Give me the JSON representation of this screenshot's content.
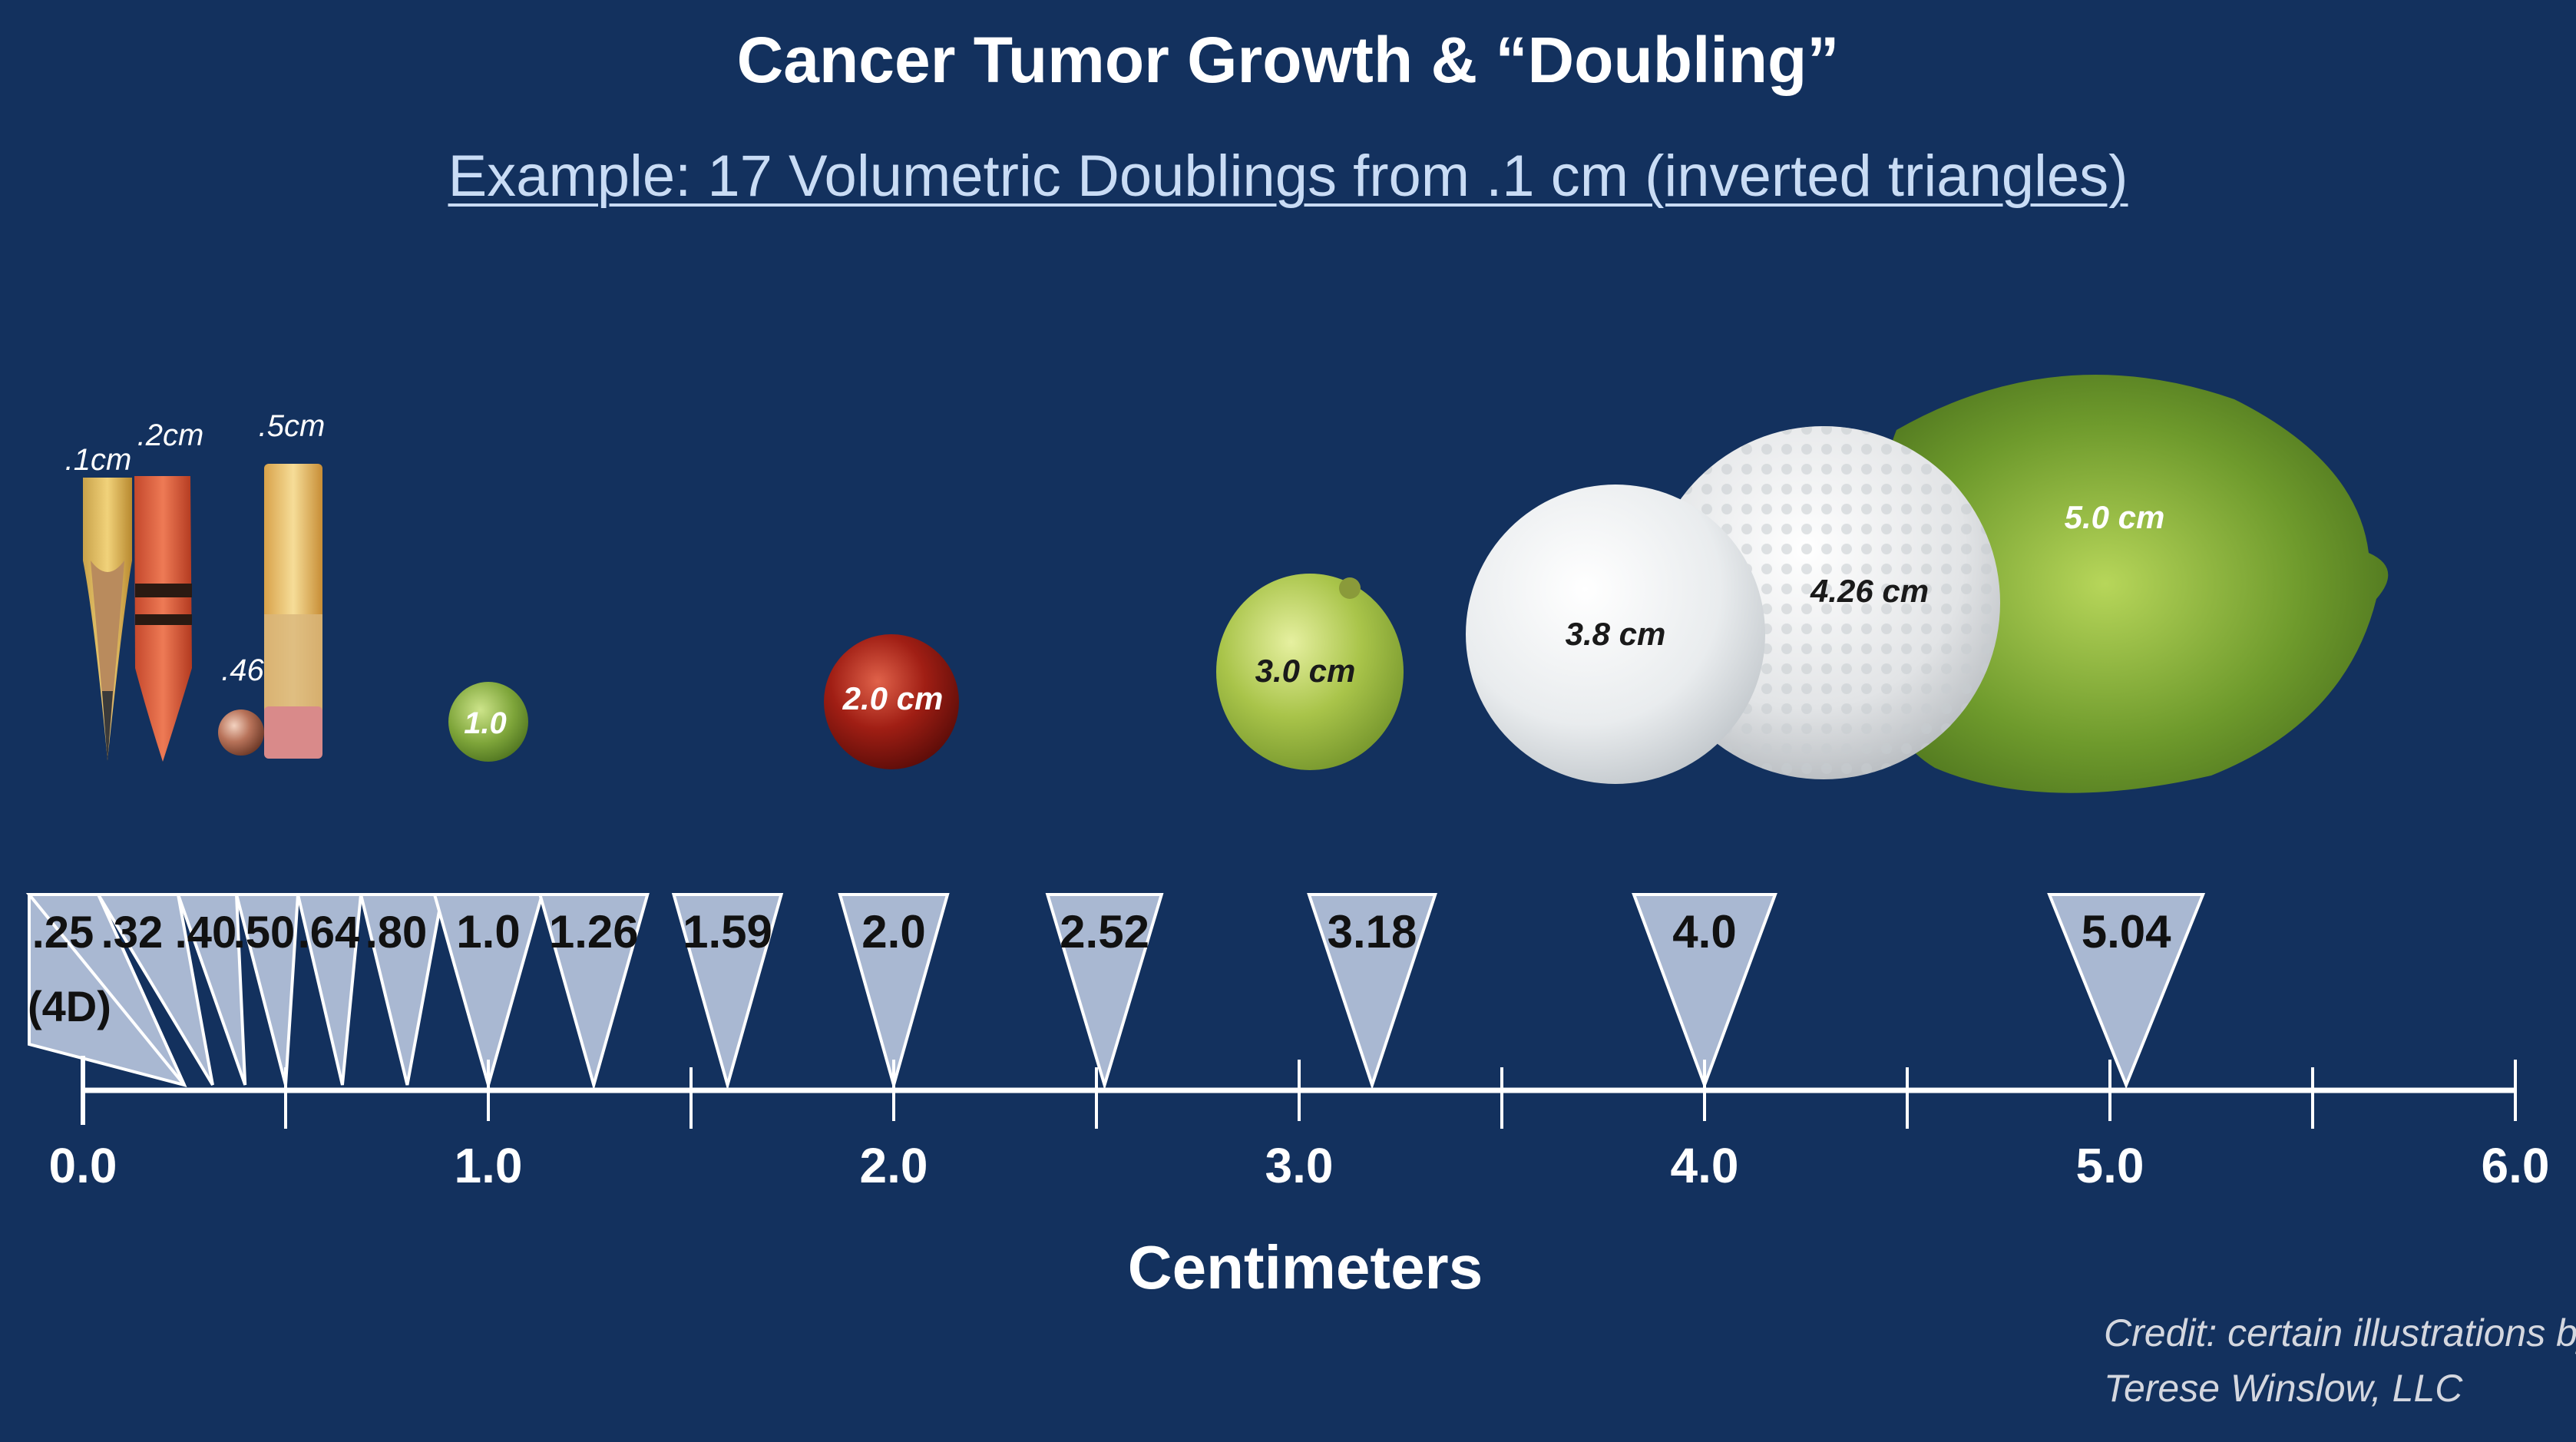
{
  "title": "Cancer Tumor Growth & “Doubling”",
  "subtitle": "Example: 17 Volumetric Doublings from .1 cm (inverted triangles)",
  "axis": {
    "label": "Centimeters",
    "min": 0,
    "max": 6,
    "tick_labels": [
      "0.0",
      "1.0",
      "2.0",
      "3.0",
      "4.0",
      "5.0",
      "6.0"
    ]
  },
  "doublings": [
    {
      "value": 0.25,
      "label": ".25"
    },
    {
      "value": 0.32,
      "label": ".32"
    },
    {
      "value": 0.4,
      "label": ".40"
    },
    {
      "value": 0.5,
      "label": ".50"
    },
    {
      "value": 0.64,
      "label": ".64"
    },
    {
      "value": 0.8,
      "label": ".80"
    },
    {
      "value": 1.0,
      "label": "1.0"
    },
    {
      "value": 1.26,
      "label": "1.26"
    },
    {
      "value": 1.59,
      "label": "1.59"
    },
    {
      "value": 2.0,
      "label": "2.0"
    },
    {
      "value": 2.52,
      "label": "2.52"
    },
    {
      "value": 3.18,
      "label": "3.18"
    },
    {
      "value": 4.0,
      "label": "4.0"
    },
    {
      "value": 5.04,
      "label": "5.04"
    }
  ],
  "first_group_note": "(4D)",
  "objects": [
    {
      "name": "pencil-tip",
      "label": ".1cm"
    },
    {
      "name": "crayon-tip",
      "label": ".2cm"
    },
    {
      "name": "bb-pellet",
      "label": ".46"
    },
    {
      "name": "pencil-eraser",
      "label": ".5cm"
    },
    {
      "name": "pea",
      "label": "1.0"
    },
    {
      "name": "cranberry",
      "label": "2.0 cm"
    },
    {
      "name": "grape",
      "label": "3.0 cm"
    },
    {
      "name": "ping-pong-ball",
      "label": "3.8 cm"
    },
    {
      "name": "golf-ball",
      "label": "4.26 cm"
    },
    {
      "name": "lime",
      "label": "5.0 cm"
    }
  ],
  "credit": {
    "line1": "Credit: certain illustrations by:",
    "line2": "Terese Winslow, LLC"
  },
  "colors": {
    "background": "#13315e",
    "triangle_fill": "#a9b8d2",
    "axis": "#ffffff",
    "subtitle": "#c9dcf5"
  }
}
